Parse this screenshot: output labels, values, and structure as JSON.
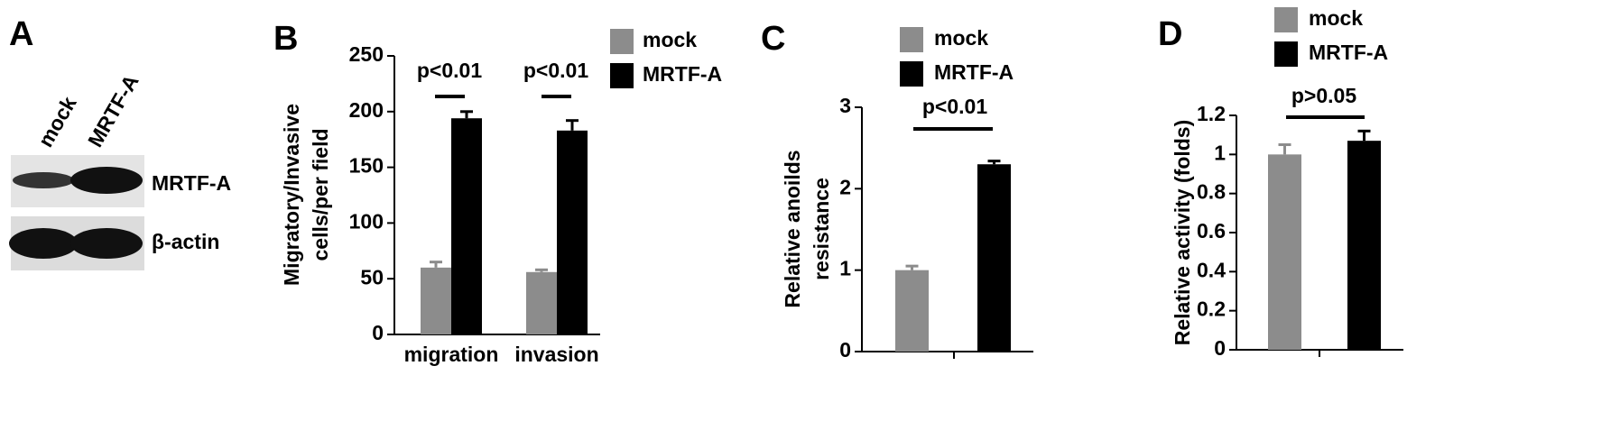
{
  "blot": {
    "panel_label": "A",
    "lanes": [
      "mock",
      "MRTF-A"
    ],
    "bands": [
      "MRTF-A",
      "β-actin"
    ]
  },
  "chart_data": [
    {
      "type": "bar",
      "panel_label": "B",
      "ylabel": [
        "Migratory/Invasive",
        "cells/per field"
      ],
      "categories": [
        "migration",
        "invasion"
      ],
      "series": [
        {
          "name": "mock",
          "color": "#8c8c8c",
          "values": [
            60,
            56
          ],
          "errors": [
            5,
            2
          ]
        },
        {
          "name": "MRTF-A",
          "color": "#000000",
          "values": [
            194,
            183
          ],
          "errors": [
            6,
            9
          ]
        }
      ],
      "annotations": [
        "p<0.01",
        "p<0.01"
      ],
      "ylim": [
        0,
        250
      ],
      "yticks": [
        0,
        50,
        100,
        150,
        200,
        250
      ]
    },
    {
      "type": "bar",
      "panel_label": "C",
      "ylabel": [
        "Relative anoilds",
        "resistance"
      ],
      "series": [
        {
          "name": "mock",
          "color": "#8c8c8c",
          "values": [
            1.0
          ],
          "errors": [
            0.05
          ]
        },
        {
          "name": "MRTF-A",
          "color": "#000000",
          "values": [
            2.3
          ],
          "errors": [
            0.04
          ]
        }
      ],
      "annotations": [
        "p<0.01"
      ],
      "ylim": [
        0,
        3
      ],
      "yticks": [
        0,
        1,
        2,
        3
      ]
    },
    {
      "type": "bar",
      "panel_label": "D",
      "ylabel": [
        "Relative activity (folds)"
      ],
      "series": [
        {
          "name": "mock",
          "color": "#8c8c8c",
          "values": [
            1.0
          ],
          "errors": [
            0.05
          ]
        },
        {
          "name": "MRTF-A",
          "color": "#000000",
          "values": [
            1.07
          ],
          "errors": [
            0.05
          ]
        }
      ],
      "annotations": [
        "p>0.05"
      ],
      "ylim": [
        0,
        1.2
      ],
      "yticks": [
        0,
        0.2,
        0.4,
        0.6,
        0.8,
        1,
        1.2
      ]
    }
  ]
}
